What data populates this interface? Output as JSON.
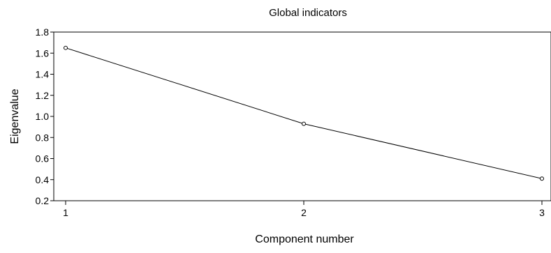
{
  "chart_data": {
    "type": "line",
    "title": "Global indicators",
    "xlabel": "Component number",
    "ylabel": "Eigenvalue",
    "x": [
      1,
      2,
      3
    ],
    "series": [
      {
        "values": [
          1.65,
          0.93,
          0.41
        ],
        "color": "#000000",
        "marker": "open-circle"
      }
    ],
    "xlim": [
      1,
      3
    ],
    "ylim": [
      0.2,
      1.8
    ],
    "x_ticks": [
      "1",
      "2",
      "3"
    ],
    "y_ticks": [
      "0.2",
      "0.4",
      "0.6",
      "0.8",
      "1.0",
      "1.2",
      "1.4",
      "1.6",
      "1.8"
    ],
    "grid": false,
    "legend": "none"
  }
}
